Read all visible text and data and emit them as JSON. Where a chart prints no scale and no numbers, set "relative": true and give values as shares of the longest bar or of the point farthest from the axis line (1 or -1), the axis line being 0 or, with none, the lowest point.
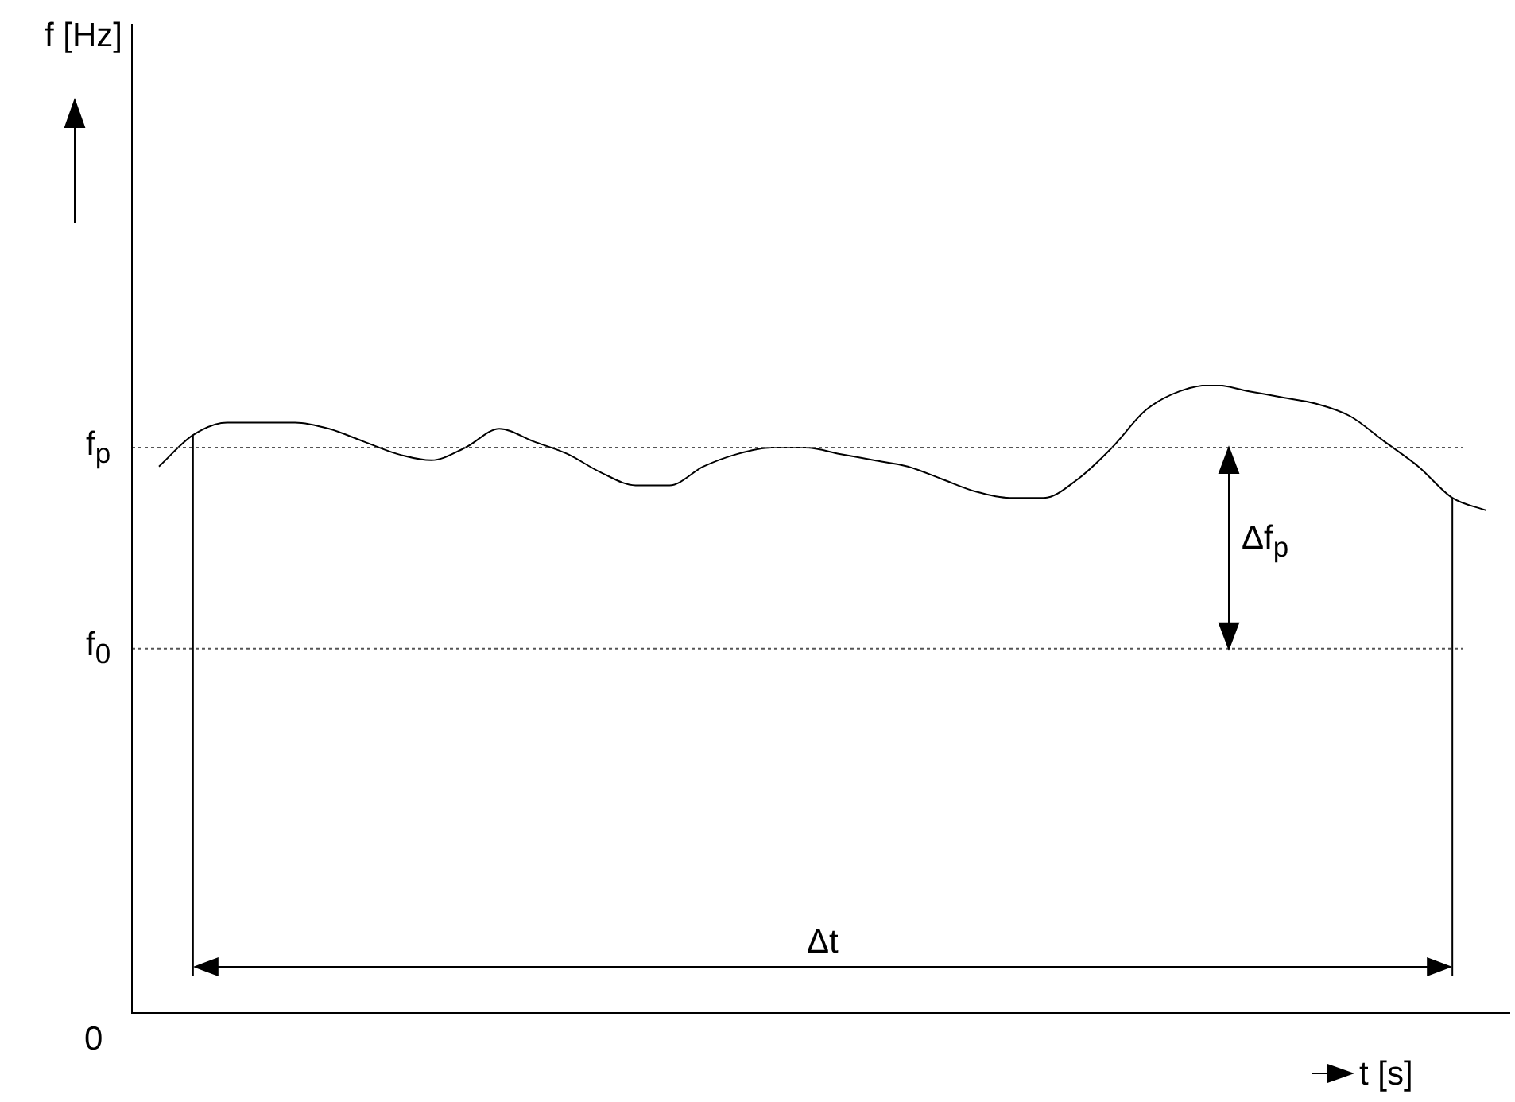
{
  "chart_data": {
    "type": "line",
    "relative": true,
    "xlabel": "t [s]",
    "color": "#000000",
    "legend": false,
    "marker": "none",
    "line_style": "solid",
    "categories": [
      null,
      null,
      null,
      null,
      null,
      null,
      null,
      null,
      null,
      null,
      null,
      null,
      null,
      null,
      null,
      null,
      null,
      null,
      null,
      null,
      null,
      null,
      null,
      null,
      null,
      null,
      null,
      null,
      null,
      null,
      null,
      null,
      null,
      null,
      null,
      null,
      null,
      null,
      null,
      null
    ],
    "values": [
      0.87,
      0.92,
      0.94,
      0.94,
      0.94,
      0.93,
      0.91,
      0.89,
      0.88,
      0.9,
      0.93,
      0.91,
      0.89,
      0.86,
      0.84,
      0.84,
      0.87,
      0.89,
      0.9,
      0.9,
      0.89,
      0.88,
      0.87,
      0.85,
      0.83,
      0.82,
      0.82,
      0.85,
      0.9,
      0.96,
      0.99,
      1,
      0.99,
      0.98,
      0.97,
      0.95,
      0.91,
      0.87,
      0.82,
      0.8
    ],
    "ref_lines": [
      {
        "axis": "y",
        "value": 0.9,
        "label": "f$_{p}$",
        "line_style": "dotted",
        "color": "#555555"
      },
      {
        "axis": "y",
        "value": 0.58,
        "label": "f$_{0}$",
        "line_style": "dotted",
        "color": "#555555"
      }
    ],
    "annotations": [
      "0",
      "Δf$_{p}$",
      "Δt",
      "f [Hz]"
    ]
  }
}
